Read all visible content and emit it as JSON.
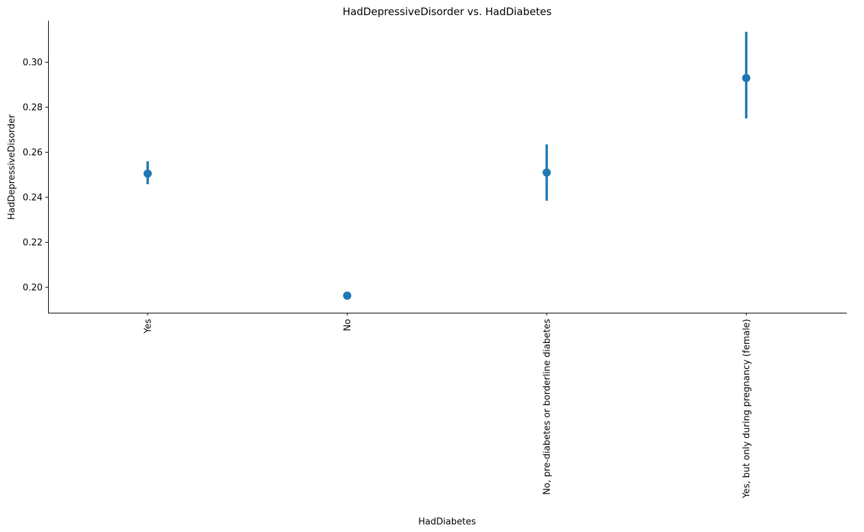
{
  "chart_data": {
    "type": "scatter",
    "title": "HadDepressiveDisorder vs. HadDiabetes",
    "xlabel": "HadDiabetes",
    "ylabel": "HadDepressiveDisorder",
    "categories": [
      "Yes",
      "No",
      "No, pre-diabetes or borderline diabetes",
      "Yes, but only during pregnancy (female)"
    ],
    "points": [
      {
        "category": "Yes",
        "value": 0.2505,
        "ci_low": 0.2458,
        "ci_high": 0.256
      },
      {
        "category": "No",
        "value": 0.1963,
        "ci_low": 0.1948,
        "ci_high": 0.198
      },
      {
        "category": "No, pre-diabetes or borderline diabetes",
        "value": 0.251,
        "ci_low": 0.2385,
        "ci_high": 0.2635
      },
      {
        "category": "Yes, but only during pregnancy (female)",
        "value": 0.293,
        "ci_low": 0.275,
        "ci_high": 0.3135
      }
    ],
    "yticks": [
      0.2,
      0.22,
      0.24,
      0.26,
      0.28,
      0.3
    ],
    "ytick_labels": [
      "0.20",
      "0.22",
      "0.24",
      "0.26",
      "0.28",
      "0.30"
    ],
    "ylim": [
      0.1887,
      0.3185
    ],
    "grid": false,
    "color": "#1f77b4"
  }
}
